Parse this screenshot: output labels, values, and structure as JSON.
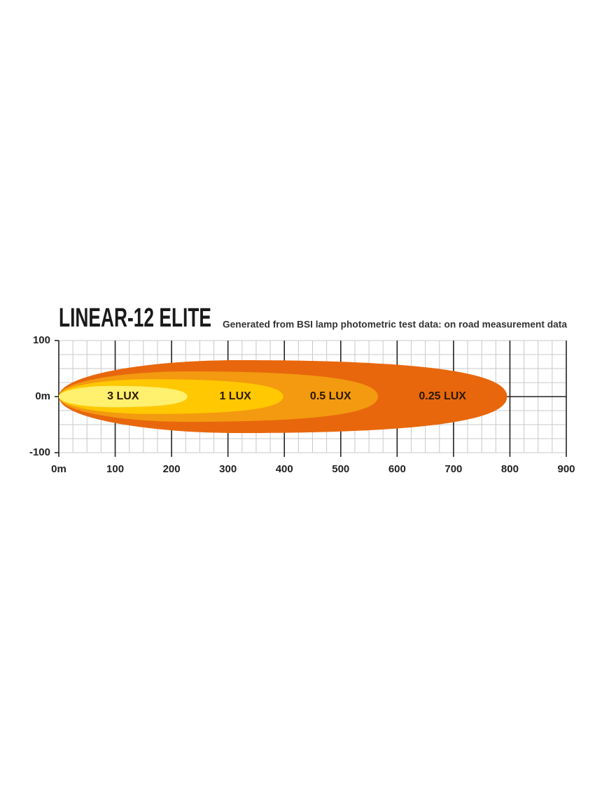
{
  "chart_data": {
    "type": "beam",
    "title": "LINEAR-12 ELITE",
    "subtitle": "Generated from BSI lamp photometric test data: on road measurement data",
    "xlim": [
      0,
      900
    ],
    "xticks": [
      {
        "value": 0,
        "label": "0m"
      },
      100,
      200,
      300,
      400,
      500,
      600,
      700,
      800,
      900
    ],
    "ylim": [
      -100,
      100
    ],
    "yticks": [
      100,
      {
        "value": 0,
        "label": "0m"
      },
      -100
    ],
    "grid": true,
    "zones": [
      {
        "name": "0.25 LUX",
        "color": "#e8670c",
        "reach": 795,
        "half_width": 65
      },
      {
        "name": "0.5 LUX",
        "color": "#f39a10",
        "reach": 566,
        "half_width": 45
      },
      {
        "name": "1 LUX",
        "color": "#ffc800",
        "reach": 398,
        "half_width": 31
      },
      {
        "name": "3 LUX",
        "color": "#fff06e",
        "reach": 228,
        "half_width": 19
      }
    ]
  }
}
